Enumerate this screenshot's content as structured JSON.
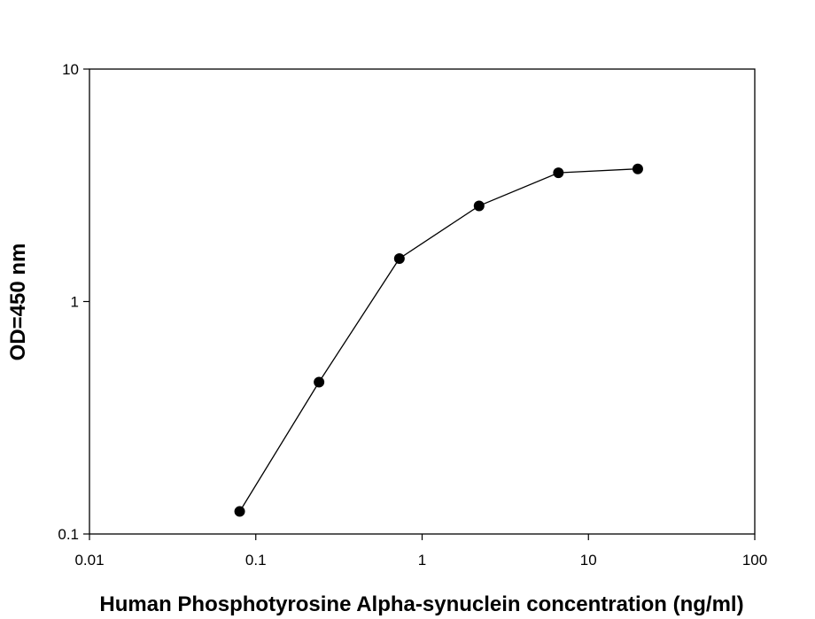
{
  "chart_data": {
    "type": "line",
    "xlabel": "Human Phosphotyrosine Alpha-synuclein concentration (ng/ml)",
    "ylabel": "OD=450 nm",
    "xscale": "log",
    "yscale": "log",
    "xlim": [
      0.01,
      100
    ],
    "ylim": [
      0.1,
      10
    ],
    "x_ticks": [
      0.01,
      0.1,
      1,
      10,
      100
    ],
    "x_tick_labels": [
      "0.01",
      "0.1",
      "1",
      "10",
      "100"
    ],
    "y_ticks": [
      0.1,
      1,
      10
    ],
    "y_tick_labels": [
      "0.1",
      "1",
      "10"
    ],
    "grid": false,
    "legend": "none",
    "series": [
      {
        "x": [
          0.08,
          0.24,
          0.73,
          2.2,
          6.6,
          19.8
        ],
        "y": [
          0.125,
          0.45,
          1.53,
          2.58,
          3.58,
          3.72
        ],
        "marker": "circle",
        "color": "#000000"
      }
    ]
  }
}
